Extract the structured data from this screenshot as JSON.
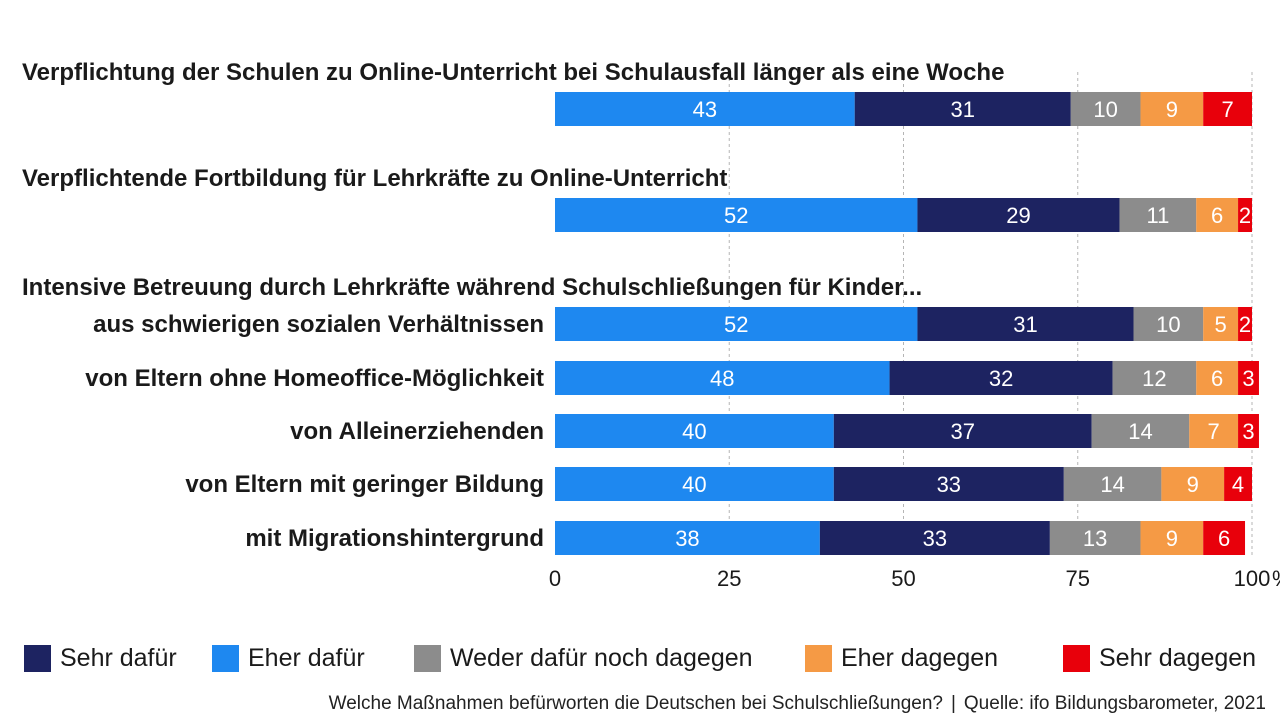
{
  "chart_data": {
    "type": "bar",
    "orientation": "horizontal",
    "stacked": true,
    "groups": [
      {
        "heading": "Verpflichtung der Schulen zu Online-Unterricht bei Schulausfall länger als eine Woche",
        "rows": [
          0
        ]
      },
      {
        "heading": "Verpflichtende Fortbildung für Lehrkräfte zu Online-Unterricht",
        "rows": [
          1
        ]
      },
      {
        "heading": "Intensive Betreuung durch Lehrkräfte während Schulschließungen für Kinder...",
        "rows": [
          2,
          3,
          4,
          5,
          6
        ]
      }
    ],
    "categories": [
      "",
      "",
      "aus schwierigen sozialen Verhältnissen",
      "von Eltern ohne Homeoffice-Möglichkeit",
      "von Alleinerziehenden",
      "von Eltern mit geringer Bildung",
      "mit Migrationshintergrund"
    ],
    "series": [
      {
        "name": "Eher dafür",
        "color": "#1e88f0",
        "label_color": "#ffffff",
        "values": [
          43,
          52,
          52,
          48,
          40,
          40,
          38
        ]
      },
      {
        "name": "Sehr dafür",
        "color": "#1d2361",
        "label_color": "#ffffff",
        "values": [
          31,
          29,
          31,
          32,
          37,
          33,
          33
        ]
      },
      {
        "name": "Weder dafür noch dagegen",
        "color": "#8c8c8c",
        "label_color": "#ffffff",
        "values": [
          10,
          11,
          10,
          12,
          14,
          14,
          13
        ]
      },
      {
        "name": "Eher dagegen",
        "color": "#f59a45",
        "label_color": "#ffffff",
        "values": [
          9,
          6,
          5,
          6,
          7,
          9,
          9
        ]
      },
      {
        "name": "Sehr dagegen",
        "color": "#e8000b",
        "label_color": "#ffffff",
        "values": [
          7,
          2,
          2,
          3,
          3,
          4,
          6
        ]
      }
    ],
    "xlim": [
      0,
      100
    ],
    "xticks": [
      0,
      25,
      50,
      75,
      100
    ],
    "xtick_labels": [
      "0",
      "25",
      "50",
      "75",
      "100"
    ],
    "x_unit": "%",
    "grid": "vertical dashed",
    "legend_order": [
      "Sehr dafür",
      "Eher dafür",
      "Weder dafür noch dagegen",
      "Eher dagegen",
      "Sehr dagegen"
    ],
    "legend_position": "bottom"
  },
  "footer": {
    "question": "Welche Maßnahmen befürworten die Deutschen bei Schulschließungen?",
    "separator": "|",
    "source": "Quelle: ifo Bildungsbarometer, 2021"
  }
}
